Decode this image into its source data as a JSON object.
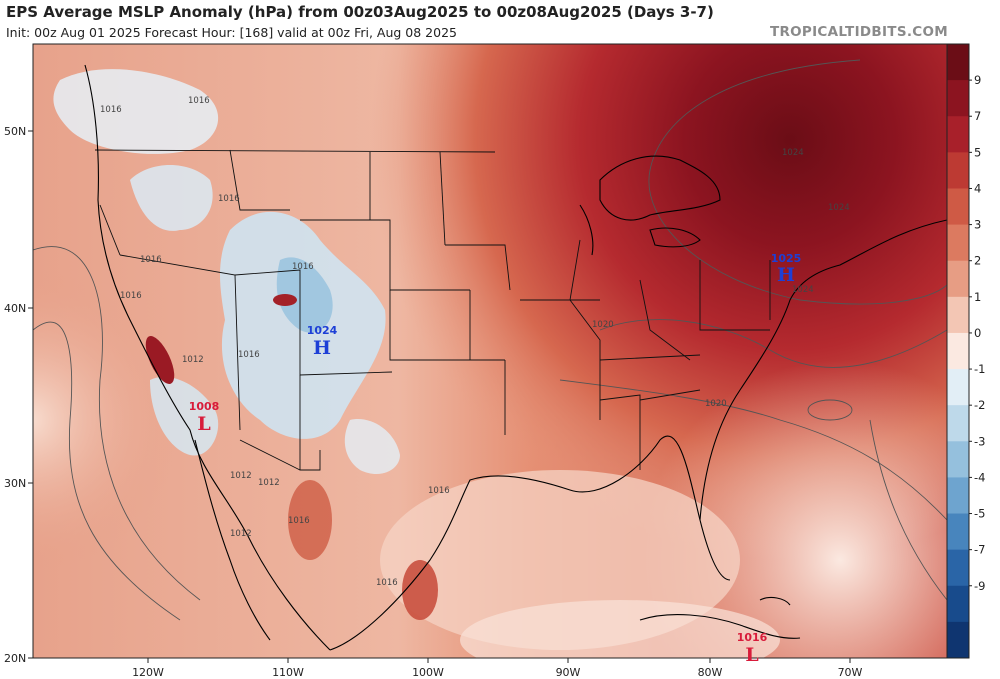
{
  "header": {
    "title": "EPS Average MSLP Anomaly (hPa) from 00z03Aug2025 to 00z08Aug2025 (Days 3-7)",
    "subtitle": "Init: 00z Aug 01 2025   Forecast Hour: [168]   valid at 00z Fri, Aug 08 2025",
    "credit": "TROPICALTIDBITS.COM"
  },
  "axes": {
    "lat_labels": [
      "50N",
      "40N",
      "30N",
      "20N"
    ],
    "lon_labels": [
      "120W",
      "110W",
      "100W",
      "90W",
      "80W",
      "70W"
    ]
  },
  "colorbar": {
    "labels": [
      "9",
      "7",
      "5",
      "4",
      "3",
      "2",
      "1",
      "0",
      "-1",
      "-2",
      "-3",
      "-4",
      "-5",
      "-7",
      "-9"
    ],
    "colors": [
      "#6b0d16",
      "#8c1420",
      "#a8202a",
      "#bd3a33",
      "#cf5a45",
      "#dc7a60",
      "#e79d84",
      "#f3c6b4",
      "#fbe9e1",
      "#e2eef6",
      "#bed9ea",
      "#95c0dd",
      "#6ea4cf",
      "#4885bd",
      "#2a65a7",
      "#184b8c",
      "#0f3570"
    ]
  },
  "pressure_centers": [
    {
      "type": "H",
      "value": "1025",
      "color": "#1d3fd6"
    },
    {
      "type": "H",
      "value": "1024",
      "color": "#1d3fd6"
    },
    {
      "type": "L",
      "value": "1008",
      "color": "#d81b3a"
    },
    {
      "type": "L",
      "value": "1016",
      "color": "#d81b3a"
    }
  ],
  "contour_labels": [
    "1016",
    "1016",
    "1016",
    "1016",
    "1016",
    "1012",
    "1016",
    "1016",
    "1012",
    "1012",
    "1016",
    "1020",
    "1020",
    "1024",
    "1024",
    "1024",
    "1016",
    "1016",
    "1012"
  ]
}
